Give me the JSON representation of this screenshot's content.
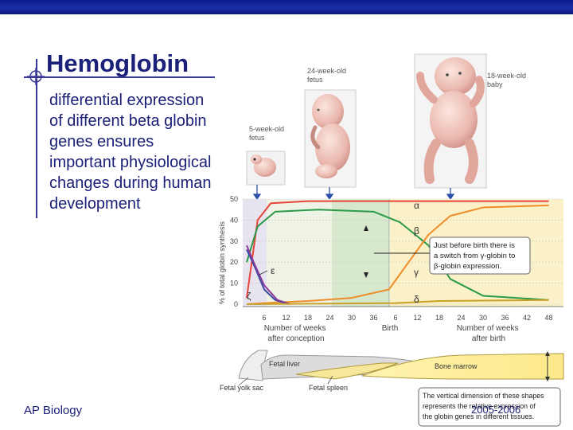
{
  "slide": {
    "title": "Hemoglobin",
    "body": "differential expression of different beta globin genes ensures important physiological changes during human development",
    "footer_left": "AP Biology",
    "footer_right": "2005-2006"
  },
  "figure": {
    "labels": {
      "fetus5": [
        "5-week-old",
        "fetus"
      ],
      "fetus24": [
        "24-week-old",
        "fetus"
      ],
      "baby18": [
        "18-week-old",
        "baby"
      ]
    },
    "y_axis_label": "% of total globin synthesis",
    "x_labels_before": [
      "Number of weeks",
      "after conception"
    ],
    "x_labels_after": [
      "Number of weeks",
      "after birth"
    ],
    "birth_label": "Birth",
    "callout_switch": [
      "Just before birth there is",
      "a switch from γ-globin to",
      "β-globin expression."
    ],
    "callout_shapes": [
      "The vertical dimension of these shapes",
      "represents the relative expression of",
      "the globin genes in different tissues."
    ],
    "tissues": {
      "yolk_sac": "Fetal yolk sac",
      "liver": "Fetal liver",
      "spleen": "Fetal spleen",
      "marrow": "Bone marrow"
    },
    "greek": {
      "alpha": "α",
      "beta": "β",
      "gamma": "γ",
      "delta": "δ",
      "epsilon": "ε",
      "zeta": "ζ"
    }
  },
  "chart_data": {
    "type": "line",
    "ylabel": "% of total globin synthesis",
    "ylim": [
      0,
      50
    ],
    "yticks": [
      0,
      10,
      20,
      30,
      40,
      50
    ],
    "xticks": [
      "6",
      "12",
      "18",
      "24",
      "30",
      "36",
      "6",
      "12",
      "18",
      "24",
      "30",
      "36",
      "42",
      "48"
    ],
    "x_note": "x positions 0–13 correspond to the tick labels above; birth lies at 6.5",
    "series": [
      {
        "name": "α",
        "color": "#e8443a",
        "points": [
          [
            -0.8,
            3
          ],
          [
            -0.3,
            40
          ],
          [
            0.3,
            48
          ],
          [
            2,
            49
          ],
          [
            6,
            49
          ],
          [
            9,
            49
          ],
          [
            13,
            49
          ]
        ]
      },
      {
        "name": "γ",
        "color": "#2b9a48",
        "points": [
          [
            -0.8,
            20
          ],
          [
            -0.3,
            37
          ],
          [
            0.5,
            44
          ],
          [
            2.5,
            45
          ],
          [
            5,
            44
          ],
          [
            6.2,
            39
          ],
          [
            7.5,
            28
          ],
          [
            8.5,
            12
          ],
          [
            10,
            4
          ],
          [
            13,
            2
          ]
        ]
      },
      {
        "name": "β",
        "color": "#ee8c2a",
        "points": [
          [
            -0.8,
            0
          ],
          [
            0,
            0.5
          ],
          [
            2,
            1.5
          ],
          [
            4,
            3
          ],
          [
            5.7,
            7
          ],
          [
            6.6,
            20
          ],
          [
            7.5,
            33
          ],
          [
            8.5,
            42
          ],
          [
            10,
            46
          ],
          [
            13,
            47
          ]
        ]
      },
      {
        "name": "ε",
        "color": "#3a4aa0",
        "points": [
          [
            -0.8,
            26
          ],
          [
            -0.4,
            17
          ],
          [
            0,
            7
          ],
          [
            0.5,
            2
          ],
          [
            1.1,
            0
          ]
        ]
      },
      {
        "name": "ζ",
        "color": "#8a3a9a",
        "points": [
          [
            -0.8,
            28
          ],
          [
            -0.4,
            18
          ],
          [
            0,
            9
          ],
          [
            0.6,
            2
          ],
          [
            1.2,
            0
          ]
        ]
      },
      {
        "name": "δ",
        "color": "#c9a227",
        "points": [
          [
            -0.8,
            0
          ],
          [
            6,
            0.5
          ],
          [
            8,
            1.5
          ],
          [
            13,
            2
          ]
        ]
      }
    ]
  }
}
